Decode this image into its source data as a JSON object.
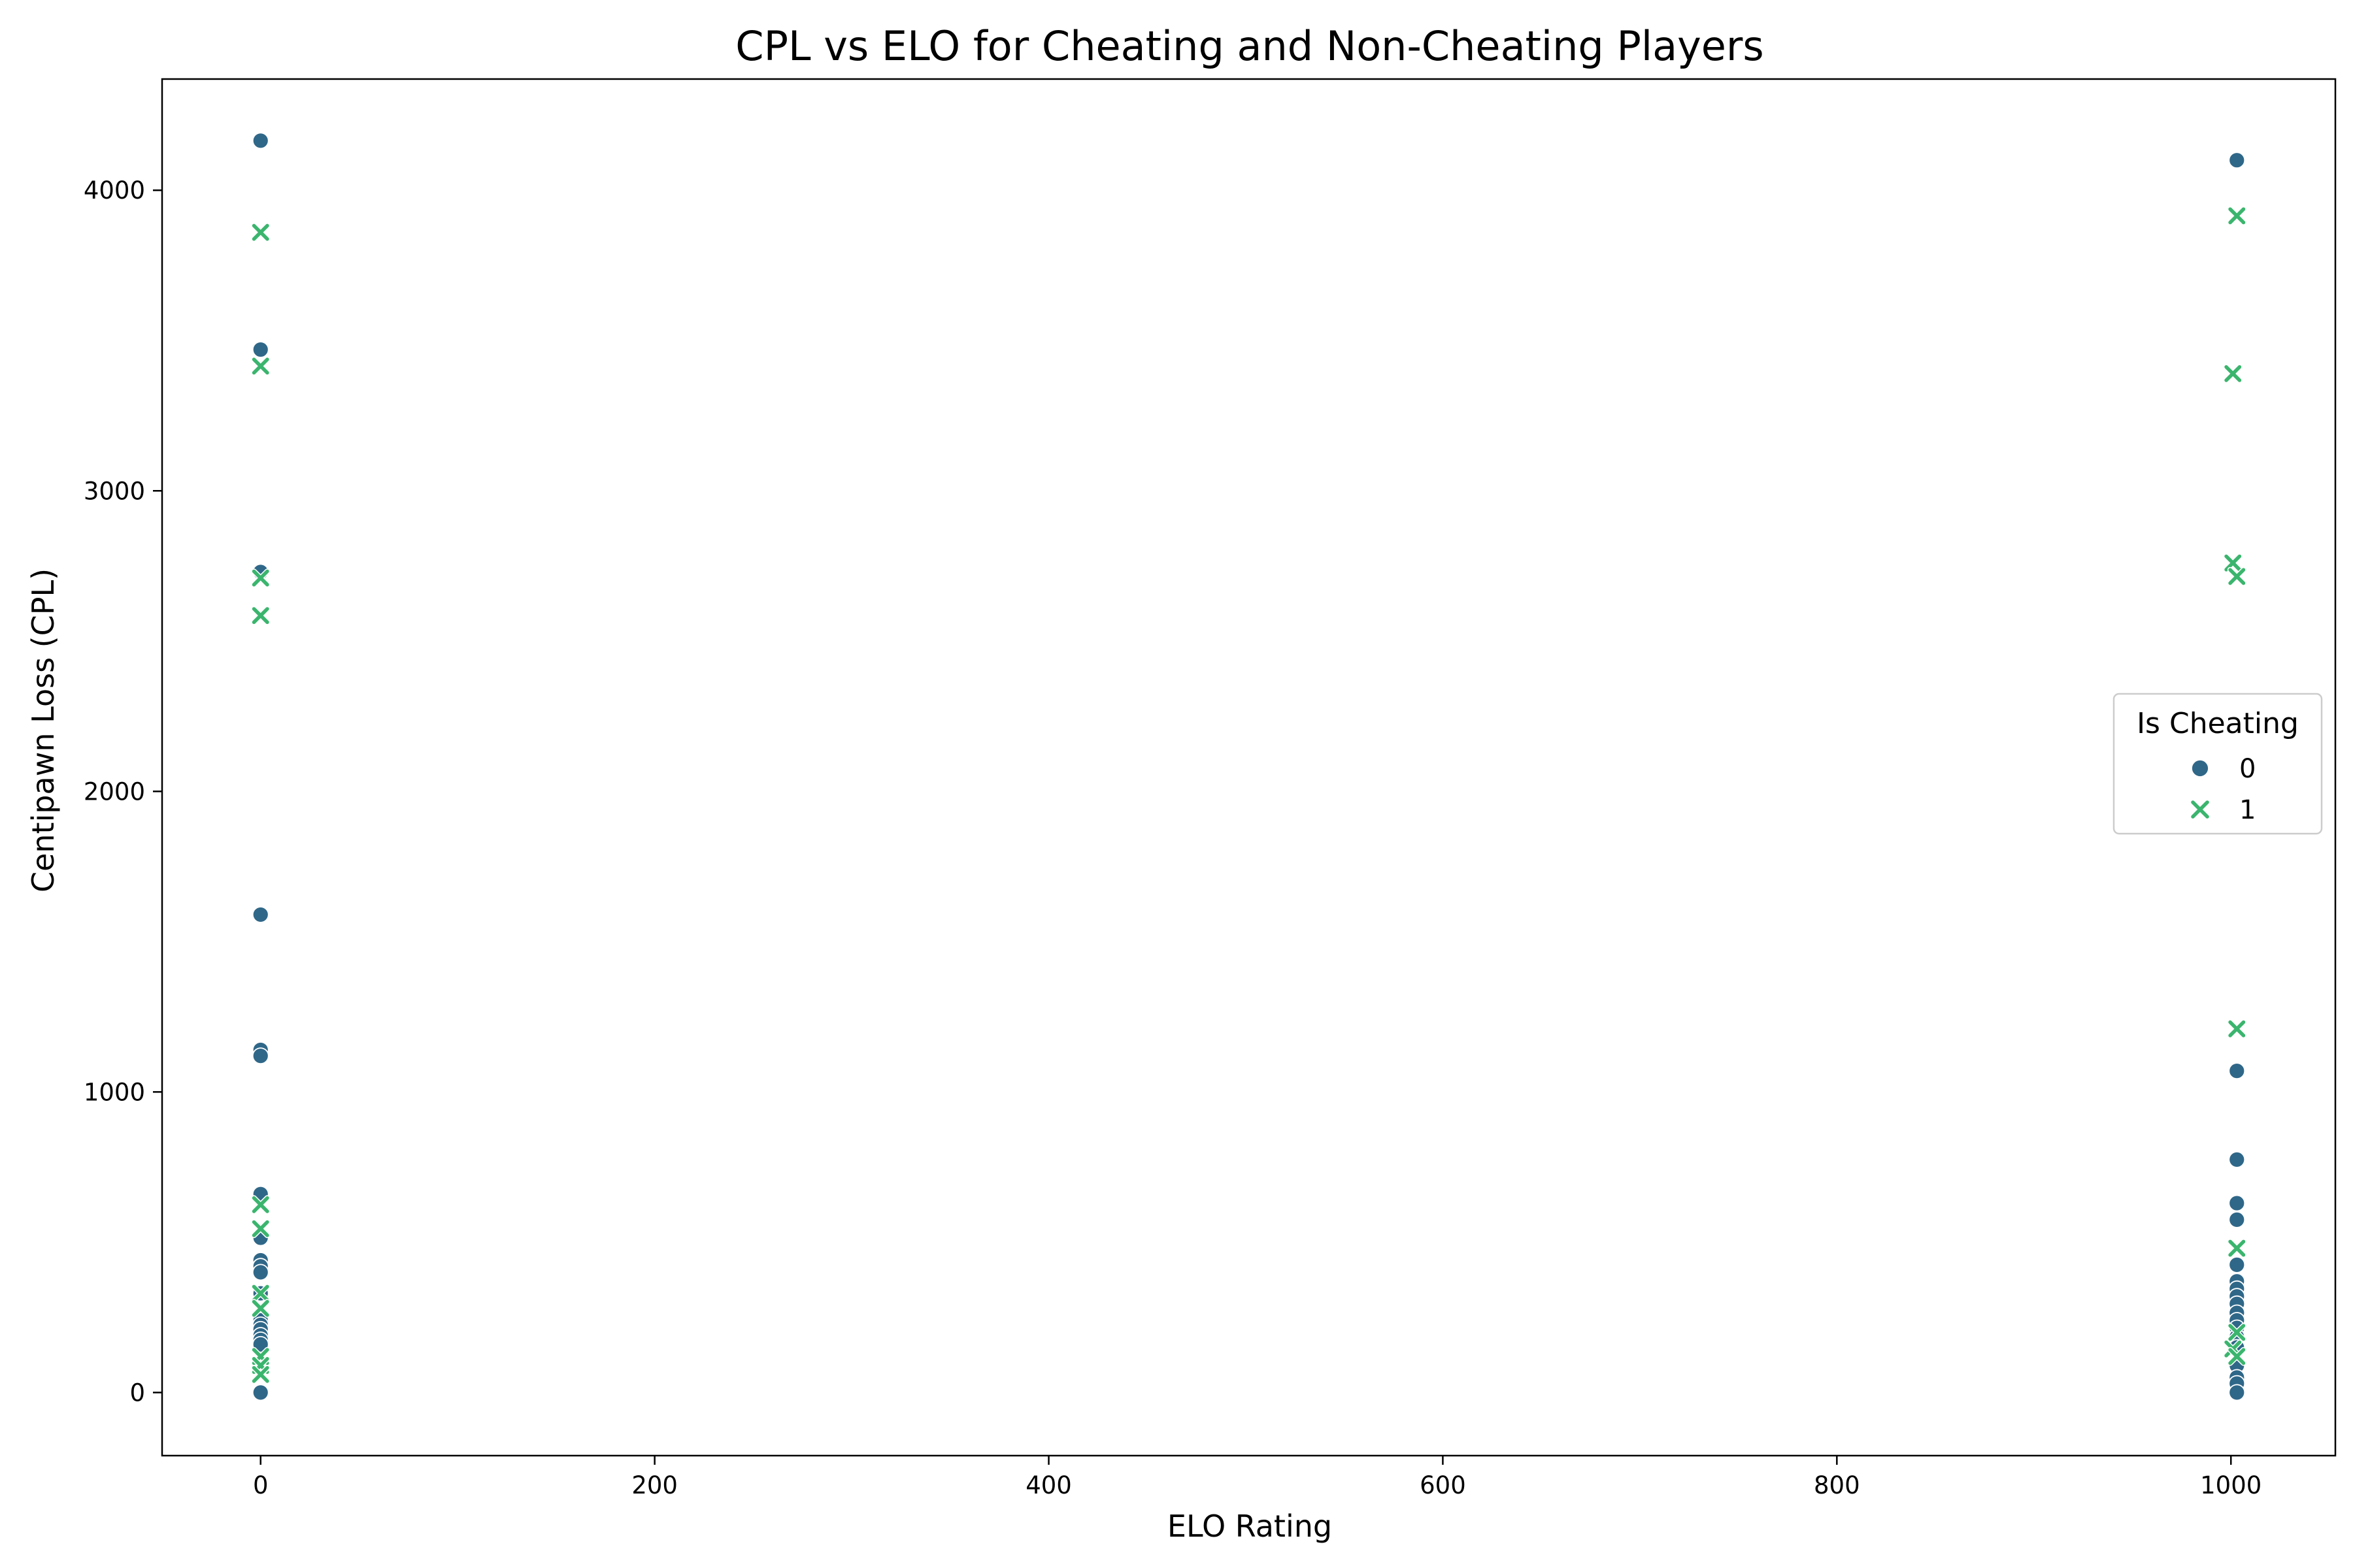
{
  "chart_data": {
    "type": "scatter",
    "title": "CPL vs ELO for Cheating and Non-Cheating Players",
    "xlabel": "ELO Rating",
    "ylabel": "Centipawn Loss (CPL)",
    "xlim": [
      -50,
      1053
    ],
    "ylim": [
      -210,
      4370
    ],
    "xticks": [
      0,
      200,
      400,
      600,
      800,
      1000
    ],
    "yticks": [
      0,
      1000,
      2000,
      3000,
      4000
    ],
    "grid": false,
    "legend": {
      "title": "Is Cheating",
      "placement": "center-right",
      "entries": [
        {
          "label": "0",
          "marker": "circle",
          "color": "#2f6788"
        },
        {
          "label": "1",
          "marker": "x",
          "color": "#3bb56e"
        }
      ]
    },
    "series": [
      {
        "name": "0",
        "marker": "circle",
        "color": "#2f6788",
        "points": [
          [
            0,
            4165
          ],
          [
            0,
            3470
          ],
          [
            0,
            2730
          ],
          [
            0,
            1590
          ],
          [
            0,
            1140
          ],
          [
            0,
            1120
          ],
          [
            0,
            660
          ],
          [
            0,
            515
          ],
          [
            0,
            440
          ],
          [
            0,
            420
          ],
          [
            0,
            400
          ],
          [
            0,
            330
          ],
          [
            0,
            240
          ],
          [
            0,
            225
          ],
          [
            0,
            210
          ],
          [
            0,
            190
          ],
          [
            0,
            175
          ],
          [
            0,
            160
          ],
          [
            0,
            0
          ],
          [
            1003,
            4100
          ],
          [
            1003,
            1070
          ],
          [
            1003,
            775
          ],
          [
            1003,
            630
          ],
          [
            1003,
            575
          ],
          [
            1003,
            425
          ],
          [
            1003,
            370
          ],
          [
            1003,
            345
          ],
          [
            1003,
            320
          ],
          [
            1003,
            295
          ],
          [
            1003,
            265
          ],
          [
            1003,
            240
          ],
          [
            1003,
            215
          ],
          [
            1003,
            185
          ],
          [
            1003,
            150
          ],
          [
            1003,
            90
          ],
          [
            1003,
            50
          ],
          [
            1003,
            30
          ],
          [
            1003,
            0
          ]
        ]
      },
      {
        "name": "1",
        "marker": "x",
        "color": "#3bb56e",
        "points": [
          [
            0,
            3860
          ],
          [
            0,
            3415
          ],
          [
            0,
            2710
          ],
          [
            0,
            2585
          ],
          [
            0,
            625
          ],
          [
            0,
            545
          ],
          [
            0,
            330
          ],
          [
            0,
            280
          ],
          [
            0,
            120
          ],
          [
            0,
            90
          ],
          [
            0,
            60
          ],
          [
            1003,
            3915
          ],
          [
            1001,
            3390
          ],
          [
            1001,
            2760
          ],
          [
            1003,
            2715
          ],
          [
            1003,
            1210
          ],
          [
            1003,
            480
          ],
          [
            1003,
            200
          ],
          [
            1001,
            145
          ],
          [
            1003,
            120
          ]
        ]
      }
    ]
  }
}
